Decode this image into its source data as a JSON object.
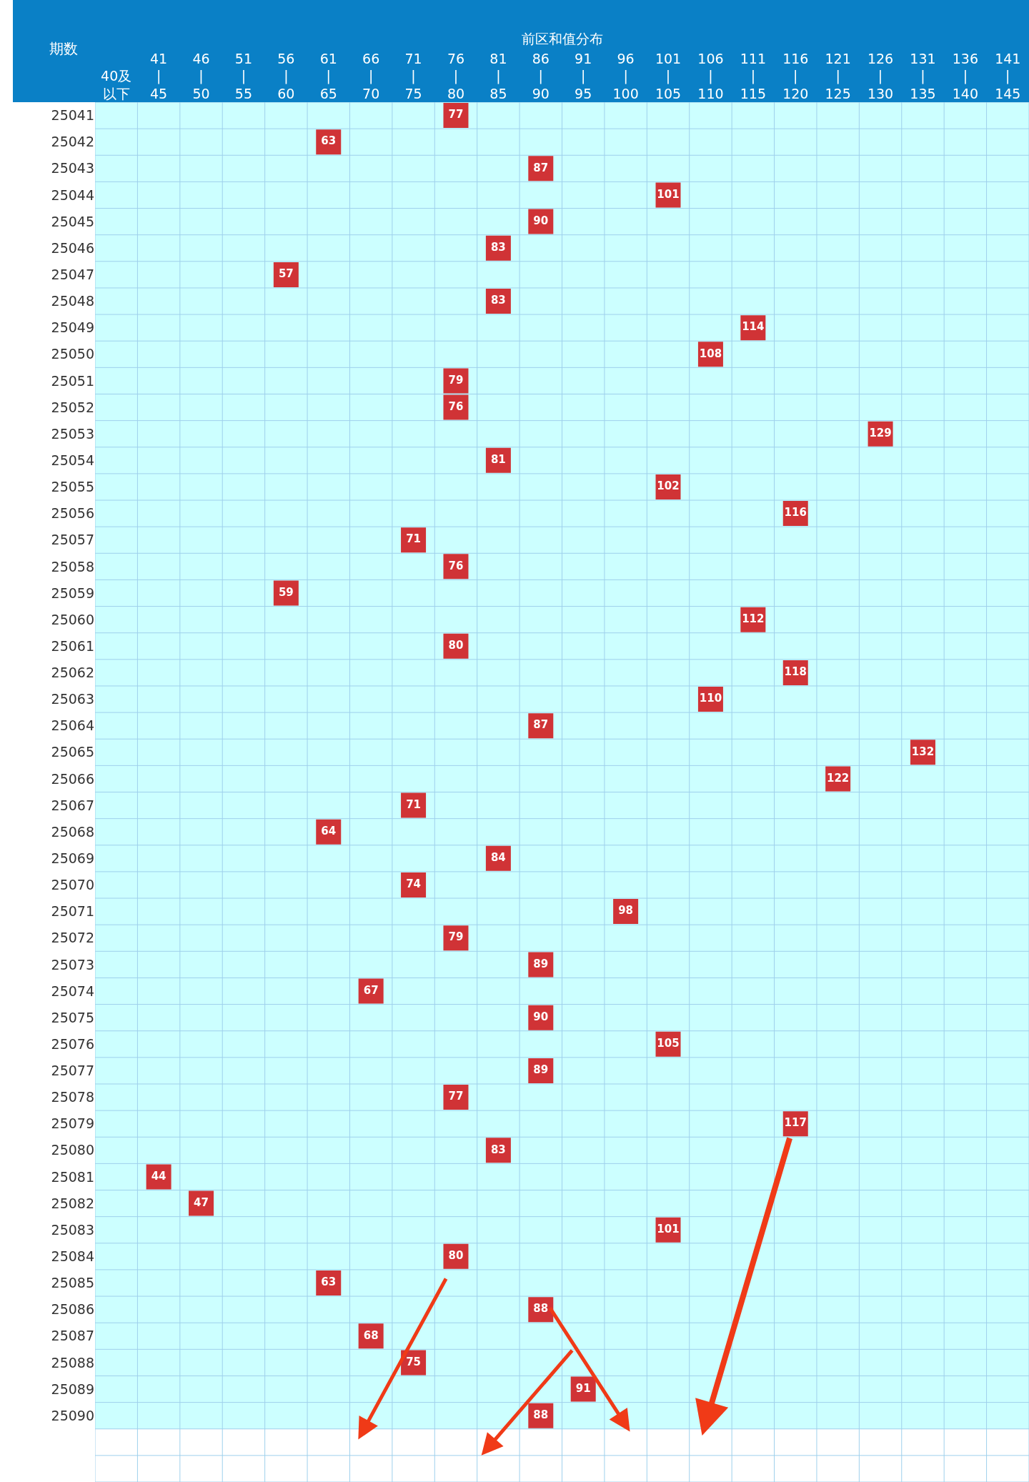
{
  "chart_data": {
    "type": "heatmap",
    "title": "前区和值分布",
    "ylabel": "期数",
    "categories": [
      "40及以下",
      "41\n|\n45",
      "46\n|\n50",
      "51\n|\n55",
      "56\n|\n60",
      "61\n|\n65",
      "66\n|\n70",
      "71\n|\n75",
      "76\n|\n80",
      "81\n|\n85",
      "86\n|\n90",
      "91\n|\n95",
      "96\n|\n100",
      "101\n|\n105",
      "106\n|\n110",
      "111\n|\n115",
      "116\n|\n120",
      "121\n|\n125",
      "126\n|\n130",
      "131\n|\n135",
      "136\n|\n140",
      "141\n|\n145"
    ],
    "y_categories": [
      "25041",
      "25042",
      "25043",
      "25044",
      "25045",
      "25046",
      "25047",
      "25048",
      "25049",
      "25050",
      "25051",
      "25052",
      "25053",
      "25054",
      "25055",
      "25056",
      "25057",
      "25058",
      "25059",
      "25060",
      "25061",
      "25062",
      "25063",
      "25064",
      "25065",
      "25066",
      "25067",
      "25068",
      "25069",
      "25070",
      "25071",
      "25072",
      "25073",
      "25074",
      "25075",
      "25076",
      "25077",
      "25078",
      "25079",
      "25080",
      "25081",
      "25082",
      "25083",
      "25084",
      "25085",
      "25086",
      "25087",
      "25088",
      "25089",
      "25090"
    ],
    "cells": [
      [
        null,
        null,
        null,
        null,
        null,
        null,
        null,
        null,
        77,
        null,
        null,
        null,
        null,
        null,
        null,
        null,
        null,
        null,
        null,
        null,
        null,
        null
      ],
      [
        null,
        null,
        null,
        null,
        null,
        63,
        null,
        null,
        null,
        null,
        null,
        null,
        null,
        null,
        null,
        null,
        null,
        null,
        null,
        null,
        null,
        null
      ],
      [
        null,
        null,
        null,
        null,
        null,
        null,
        null,
        null,
        null,
        null,
        87,
        null,
        null,
        null,
        null,
        null,
        null,
        null,
        null,
        null,
        null,
        null
      ],
      [
        null,
        null,
        null,
        null,
        null,
        null,
        null,
        null,
        null,
        null,
        null,
        null,
        null,
        101,
        null,
        null,
        null,
        null,
        null,
        null,
        null,
        null
      ],
      [
        null,
        null,
        null,
        null,
        null,
        null,
        null,
        null,
        null,
        null,
        90,
        null,
        null,
        null,
        null,
        null,
        null,
        null,
        null,
        null,
        null,
        null
      ],
      [
        null,
        null,
        null,
        null,
        null,
        null,
        null,
        null,
        null,
        83,
        null,
        null,
        null,
        null,
        null,
        null,
        null,
        null,
        null,
        null,
        null,
        null
      ],
      [
        null,
        null,
        null,
        null,
        57,
        null,
        null,
        null,
        null,
        null,
        null,
        null,
        null,
        null,
        null,
        null,
        null,
        null,
        null,
        null,
        null,
        null
      ],
      [
        null,
        null,
        null,
        null,
        null,
        null,
        null,
        null,
        null,
        83,
        null,
        null,
        null,
        null,
        null,
        null,
        null,
        null,
        null,
        null,
        null,
        null
      ],
      [
        null,
        null,
        null,
        null,
        null,
        null,
        null,
        null,
        null,
        null,
        null,
        null,
        null,
        null,
        null,
        114,
        null,
        null,
        null,
        null,
        null,
        null
      ],
      [
        null,
        null,
        null,
        null,
        null,
        null,
        null,
        null,
        null,
        null,
        null,
        null,
        null,
        null,
        108,
        null,
        null,
        null,
        null,
        null,
        null,
        null
      ],
      [
        null,
        null,
        null,
        null,
        null,
        null,
        null,
        null,
        79,
        null,
        null,
        null,
        null,
        null,
        null,
        null,
        null,
        null,
        null,
        null,
        null,
        null
      ],
      [
        null,
        null,
        null,
        null,
        null,
        null,
        null,
        null,
        76,
        null,
        null,
        null,
        null,
        null,
        null,
        null,
        null,
        null,
        null,
        null,
        null,
        null
      ],
      [
        null,
        null,
        null,
        null,
        null,
        null,
        null,
        null,
        null,
        null,
        null,
        null,
        null,
        null,
        null,
        null,
        null,
        null,
        129,
        null,
        null,
        null
      ],
      [
        null,
        null,
        null,
        null,
        null,
        null,
        null,
        null,
        null,
        81,
        null,
        null,
        null,
        null,
        null,
        null,
        null,
        null,
        null,
        null,
        null,
        null
      ],
      [
        null,
        null,
        null,
        null,
        null,
        null,
        null,
        null,
        null,
        null,
        null,
        null,
        null,
        102,
        null,
        null,
        null,
        null,
        null,
        null,
        null,
        null
      ],
      [
        null,
        null,
        null,
        null,
        null,
        null,
        null,
        null,
        null,
        null,
        null,
        null,
        null,
        null,
        null,
        null,
        116,
        null,
        null,
        null,
        null,
        null
      ],
      [
        null,
        null,
        null,
        null,
        null,
        null,
        null,
        71,
        null,
        null,
        null,
        null,
        null,
        null,
        null,
        null,
        null,
        null,
        null,
        null,
        null,
        null
      ],
      [
        null,
        null,
        null,
        null,
        null,
        null,
        null,
        null,
        76,
        null,
        null,
        null,
        null,
        null,
        null,
        null,
        null,
        null,
        null,
        null,
        null,
        null
      ],
      [
        null,
        null,
        null,
        null,
        59,
        null,
        null,
        null,
        null,
        null,
        null,
        null,
        null,
        null,
        null,
        null,
        null,
        null,
        null,
        null,
        null,
        null
      ],
      [
        null,
        null,
        null,
        null,
        null,
        null,
        null,
        null,
        null,
        null,
        null,
        null,
        null,
        null,
        null,
        112,
        null,
        null,
        null,
        null,
        null,
        null
      ],
      [
        null,
        null,
        null,
        null,
        null,
        null,
        null,
        null,
        80,
        null,
        null,
        null,
        null,
        null,
        null,
        null,
        null,
        null,
        null,
        null,
        null,
        null
      ],
      [
        null,
        null,
        null,
        null,
        null,
        null,
        null,
        null,
        null,
        null,
        null,
        null,
        null,
        null,
        null,
        null,
        118,
        null,
        null,
        null,
        null,
        null
      ],
      [
        null,
        null,
        null,
        null,
        null,
        null,
        null,
        null,
        null,
        null,
        null,
        null,
        null,
        null,
        110,
        null,
        null,
        null,
        null,
        null,
        null,
        null
      ],
      [
        null,
        null,
        null,
        null,
        null,
        null,
        null,
        null,
        null,
        null,
        87,
        null,
        null,
        null,
        null,
        null,
        null,
        null,
        null,
        null,
        null,
        null
      ],
      [
        null,
        null,
        null,
        null,
        null,
        null,
        null,
        null,
        null,
        null,
        null,
        null,
        null,
        null,
        null,
        null,
        null,
        null,
        null,
        132,
        null,
        null
      ],
      [
        null,
        null,
        null,
        null,
        null,
        null,
        null,
        null,
        null,
        null,
        null,
        null,
        null,
        null,
        null,
        null,
        null,
        122,
        null,
        null,
        null,
        null
      ],
      [
        null,
        null,
        null,
        null,
        null,
        null,
        null,
        71,
        null,
        null,
        null,
        null,
        null,
        null,
        null,
        null,
        null,
        null,
        null,
        null,
        null,
        null
      ],
      [
        null,
        null,
        null,
        null,
        null,
        64,
        null,
        null,
        null,
        null,
        null,
        null,
        null,
        null,
        null,
        null,
        null,
        null,
        null,
        null,
        null,
        null
      ],
      [
        null,
        null,
        null,
        null,
        null,
        null,
        null,
        null,
        null,
        84,
        null,
        null,
        null,
        null,
        null,
        null,
        null,
        null,
        null,
        null,
        null,
        null
      ],
      [
        null,
        null,
        null,
        null,
        null,
        null,
        null,
        74,
        null,
        null,
        null,
        null,
        null,
        null,
        null,
        null,
        null,
        null,
        null,
        null,
        null,
        null
      ],
      [
        null,
        null,
        null,
        null,
        null,
        null,
        null,
        null,
        null,
        null,
        null,
        null,
        98,
        null,
        null,
        null,
        null,
        null,
        null,
        null,
        null,
        null
      ],
      [
        null,
        null,
        null,
        null,
        null,
        null,
        null,
        null,
        79,
        null,
        null,
        null,
        null,
        null,
        null,
        null,
        null,
        null,
        null,
        null,
        null,
        null
      ],
      [
        null,
        null,
        null,
        null,
        null,
        null,
        null,
        null,
        null,
        null,
        89,
        null,
        null,
        null,
        null,
        null,
        null,
        null,
        null,
        null,
        null,
        null
      ],
      [
        null,
        null,
        null,
        null,
        null,
        null,
        67,
        null,
        null,
        null,
        null,
        null,
        null,
        null,
        null,
        null,
        null,
        null,
        null,
        null,
        null,
        null
      ],
      [
        null,
        null,
        null,
        null,
        null,
        null,
        null,
        null,
        null,
        null,
        90,
        null,
        null,
        null,
        null,
        null,
        null,
        null,
        null,
        null,
        null,
        null
      ],
      [
        null,
        null,
        null,
        null,
        null,
        null,
        null,
        null,
        null,
        null,
        null,
        null,
        null,
        105,
        null,
        null,
        null,
        null,
        null,
        null,
        null,
        null
      ],
      [
        null,
        null,
        null,
        null,
        null,
        null,
        null,
        null,
        null,
        null,
        89,
        null,
        null,
        null,
        null,
        null,
        null,
        null,
        null,
        null,
        null,
        null
      ],
      [
        null,
        null,
        null,
        null,
        null,
        null,
        null,
        null,
        77,
        null,
        null,
        null,
        null,
        null,
        null,
        null,
        null,
        null,
        null,
        null,
        null,
        null
      ],
      [
        null,
        null,
        null,
        null,
        null,
        null,
        null,
        null,
        null,
        null,
        null,
        null,
        null,
        null,
        null,
        null,
        117,
        null,
        null,
        null,
        null,
        null
      ],
      [
        null,
        null,
        null,
        null,
        null,
        null,
        null,
        null,
        null,
        83,
        null,
        null,
        null,
        null,
        null,
        null,
        null,
        null,
        null,
        null,
        null,
        null
      ],
      [
        null,
        44,
        null,
        null,
        null,
        null,
        null,
        null,
        null,
        null,
        null,
        null,
        null,
        null,
        null,
        null,
        null,
        null,
        null,
        null,
        null,
        null
      ],
      [
        null,
        null,
        47,
        null,
        null,
        null,
        null,
        null,
        null,
        null,
        null,
        null,
        null,
        null,
        null,
        null,
        null,
        null,
        null,
        null,
        null,
        null
      ],
      [
        null,
        null,
        null,
        null,
        null,
        null,
        null,
        null,
        null,
        null,
        null,
        null,
        null,
        101,
        null,
        null,
        null,
        null,
        null,
        null,
        null,
        null
      ],
      [
        null,
        null,
        null,
        null,
        null,
        null,
        null,
        null,
        80,
        null,
        null,
        null,
        null,
        null,
        null,
        null,
        null,
        null,
        null,
        null,
        null,
        null
      ],
      [
        null,
        null,
        null,
        null,
        null,
        63,
        null,
        null,
        null,
        null,
        null,
        null,
        null,
        null,
        null,
        null,
        null,
        null,
        null,
        null,
        null,
        null
      ],
      [
        null,
        null,
        null,
        null,
        null,
        null,
        null,
        null,
        null,
        null,
        88,
        null,
        null,
        null,
        null,
        null,
        null,
        null,
        null,
        null,
        null,
        null
      ],
      [
        null,
        null,
        null,
        null,
        null,
        null,
        68,
        null,
        null,
        null,
        null,
        null,
        null,
        null,
        null,
        null,
        null,
        null,
        null,
        null,
        null,
        null
      ],
      [
        null,
        null,
        null,
        null,
        null,
        null,
        null,
        75,
        null,
        null,
        null,
        null,
        null,
        null,
        null,
        null,
        null,
        null,
        null,
        null,
        null,
        null
      ],
      [
        null,
        null,
        null,
        null,
        null,
        null,
        null,
        null,
        null,
        null,
        null,
        91,
        null,
        null,
        null,
        null,
        null,
        null,
        null,
        null,
        null,
        null
      ],
      [
        null,
        null,
        null,
        null,
        null,
        null,
        null,
        null,
        null,
        null,
        88,
        null,
        null,
        null,
        null,
        null,
        null,
        null,
        null,
        null,
        null,
        null
      ]
    ],
    "colors": [
      "#d03336"
    ],
    "grid": true,
    "data_labels": true
  }
}
